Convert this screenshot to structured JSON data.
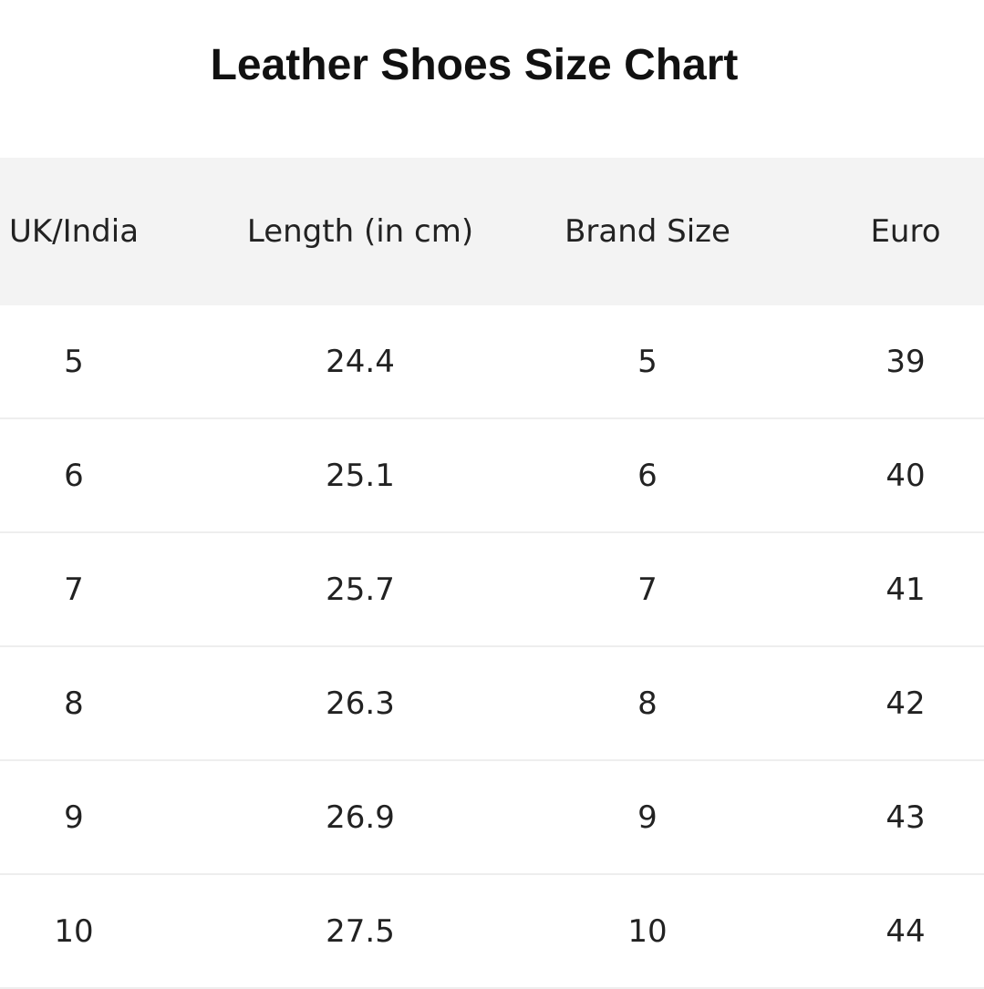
{
  "title": "Leather Shoes Size Chart",
  "table": {
    "headers": [
      "UK/India",
      "Length (in cm)",
      "Brand Size",
      "Euro"
    ],
    "rows": [
      [
        "5",
        "24.4",
        "5",
        "39"
      ],
      [
        "6",
        "25.1",
        "6",
        "40"
      ],
      [
        "7",
        "25.7",
        "7",
        "41"
      ],
      [
        "8",
        "26.3",
        "8",
        "42"
      ],
      [
        "9",
        "26.9",
        "9",
        "43"
      ],
      [
        "10",
        "27.5",
        "10",
        "44"
      ]
    ]
  },
  "colors": {
    "header_bg": "#f3f3f3",
    "text": "#222222"
  }
}
